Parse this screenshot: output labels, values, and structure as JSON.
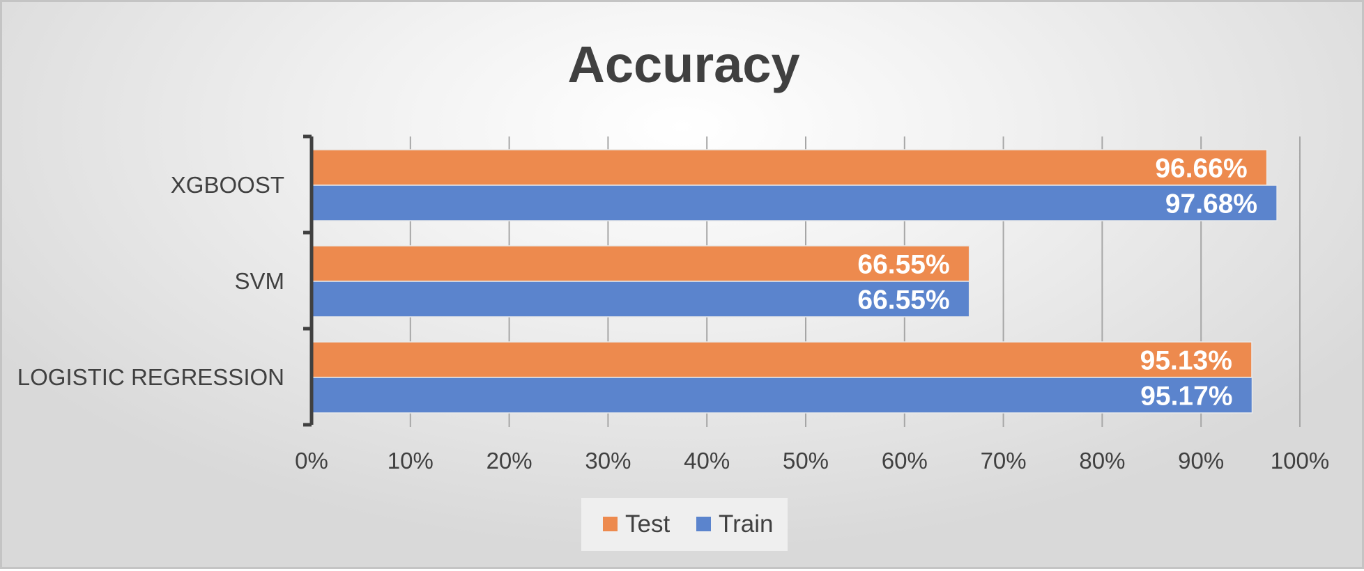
{
  "chart_data": {
    "type": "bar",
    "orientation": "horizontal",
    "title": "Accuracy",
    "xlabel": "",
    "ylabel": "",
    "categories": [
      "XGBOOST",
      "SVM",
      "LOGISTIC REGRESSION"
    ],
    "series": [
      {
        "name": "Test",
        "color": "#ed8a4e",
        "values": [
          96.66,
          66.55,
          95.13
        ],
        "labels": [
          "96.66%",
          "66.55%",
          "95.13%"
        ]
      },
      {
        "name": "Train",
        "color": "#5b84cd",
        "values": [
          97.68,
          66.55,
          95.17
        ],
        "labels": [
          "97.68%",
          "66.55%",
          "95.17%"
        ]
      }
    ],
    "xlim": [
      0,
      100
    ],
    "xticks": [
      0,
      10,
      20,
      30,
      40,
      50,
      60,
      70,
      80,
      90,
      100
    ],
    "xtick_labels": [
      "0%",
      "10%",
      "20%",
      "30%",
      "40%",
      "50%",
      "60%",
      "70%",
      "80%",
      "90%",
      "100%"
    ],
    "grid": "vertical",
    "legend_position": "bottom"
  }
}
